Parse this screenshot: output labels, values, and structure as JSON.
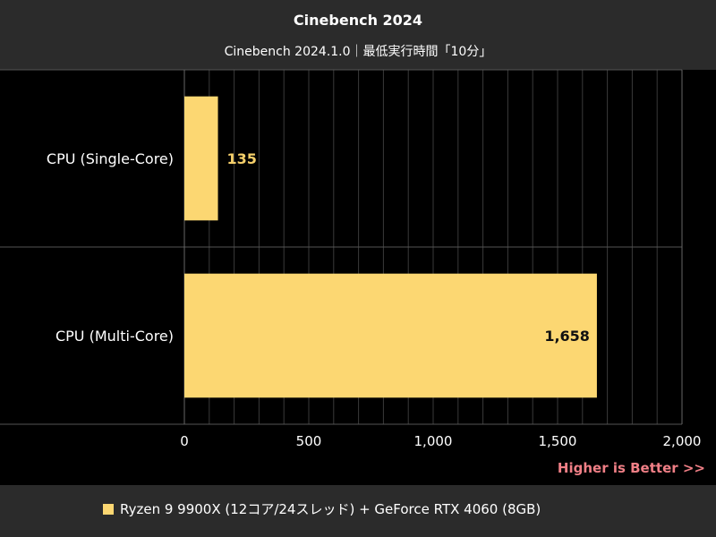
{
  "chart_data": {
    "type": "bar",
    "orientation": "horizontal",
    "title": "Cinebench 2024",
    "subtitle": "Cinebench 2024.1.0｜最低実行時間「10分」",
    "categories": [
      "CPU (Single-Core)",
      "CPU (Multi-Core)"
    ],
    "series": [
      {
        "name": "Ryzen 9 9900X (12コア/24スレッド) + GeForce RTX 4060 (8GB)",
        "values": [
          135,
          1658
        ],
        "value_labels": [
          "135",
          "1,658"
        ],
        "color": "#fcd772"
      }
    ],
    "xlim": [
      0,
      2000
    ],
    "x_ticks": [
      0,
      500,
      1000,
      1500,
      2000
    ],
    "x_tick_labels": [
      "0",
      "500",
      "1,000",
      "1,500",
      "2,000"
    ],
    "minor_grid_step": 100,
    "grid": true,
    "legend_position": "bottom",
    "note": "Higher is Better >>"
  },
  "colors": {
    "background": "#2b2b2b",
    "plot_background": "#000000",
    "bar": "#fcd772",
    "note": "#f07f86"
  }
}
